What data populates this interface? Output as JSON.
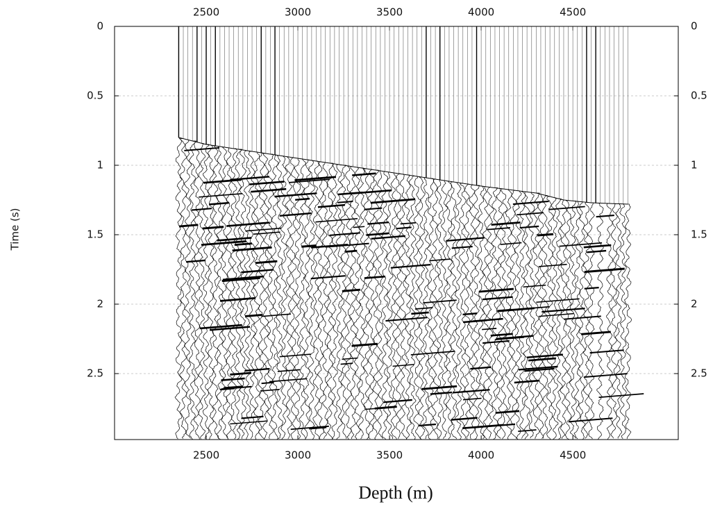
{
  "chart_data": {
    "type": "wiggle",
    "x_label": "Depth (m)",
    "y_label": "Time (s)",
    "x": [
      2350,
      2500,
      3000,
      3500,
      4000,
      4300,
      4450,
      4600,
      4800
    ],
    "values": [
      0.8,
      0.85,
      0.95,
      1.05,
      1.15,
      1.2,
      1.25,
      1.27,
      1.28
    ],
    "color": "#000000",
    "xlim": [
      2000,
      5075
    ],
    "xticks": [
      2500,
      3000,
      3500,
      4000,
      4500
    ],
    "ylim": [
      0,
      2.975
    ],
    "yticks": [
      0,
      0.5,
      1,
      1.5,
      2,
      2.5
    ],
    "y_inverted": true,
    "grid": true
  }
}
